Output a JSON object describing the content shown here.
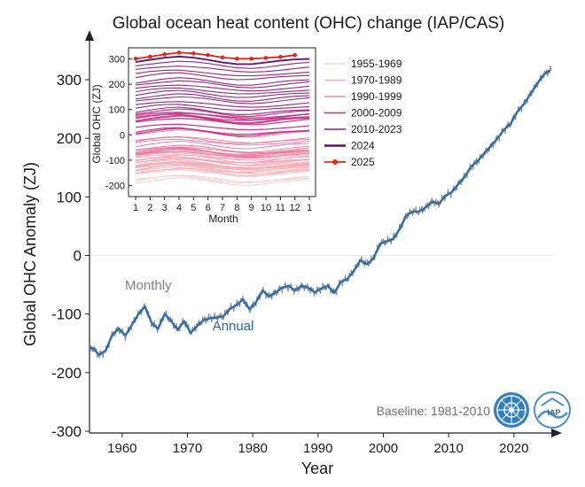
{
  "chart_data": [
    {
      "type": "line",
      "title": "Global ocean heat content (OHC) change (IAP/CAS)",
      "xlabel": "Year",
      "ylabel": "Global OHC Anomaly (ZJ)",
      "xlim": [
        1955,
        2026
      ],
      "ylim": [
        -300,
        350
      ],
      "xticks": [
        1960,
        1970,
        1980,
        1990,
        2000,
        2010,
        2020
      ],
      "yticks": [
        -300,
        -200,
        -100,
        0,
        100,
        200,
        300
      ],
      "baseline_note": "Baseline: 1981-2010",
      "colors": {
        "monthly": "#8c8c8c",
        "annual": "#2e6ea8",
        "zero_line": "#e6e6e6"
      },
      "series": [
        {
          "name": "Monthly",
          "role": "monthly"
        },
        {
          "name": "Annual",
          "role": "annual",
          "x": [
            1955,
            1956,
            1957,
            1958,
            1959,
            1960,
            1961,
            1962,
            1963,
            1964,
            1965,
            1966,
            1967,
            1968,
            1969,
            1970,
            1971,
            1972,
            1973,
            1974,
            1975,
            1976,
            1977,
            1978,
            1979,
            1980,
            1981,
            1982,
            1983,
            1984,
            1985,
            1986,
            1987,
            1988,
            1989,
            1990,
            1991,
            1992,
            1993,
            1994,
            1995,
            1996,
            1997,
            1998,
            1999,
            2000,
            2001,
            2002,
            2003,
            2004,
            2005,
            2006,
            2007,
            2008,
            2009,
            2010,
            2011,
            2012,
            2013,
            2014,
            2015,
            2016,
            2017,
            2018,
            2019,
            2020,
            2021,
            2022,
            2023,
            2024,
            2025
          ],
          "values": [
            -158,
            -170,
            -162,
            -135,
            -125,
            -137,
            -118,
            -100,
            -87,
            -115,
            -125,
            -100,
            -112,
            -127,
            -112,
            -132,
            -120,
            -110,
            -107,
            -106,
            -104,
            -91,
            -85,
            -75,
            -92,
            -80,
            -60,
            -70,
            -63,
            -55,
            -52,
            -60,
            -52,
            -55,
            -63,
            -56,
            -52,
            -64,
            -45,
            -40,
            -26,
            -8,
            -15,
            -5,
            20,
            24,
            28,
            45,
            68,
            75,
            75,
            82,
            92,
            88,
            102,
            108,
            122,
            135,
            152,
            162,
            175,
            187,
            200,
            215,
            225,
            245,
            258,
            275,
            292,
            308,
            316
          ]
        }
      ],
      "annotations": [
        {
          "text": "Monthly",
          "year": 1964,
          "value": -58
        },
        {
          "text": "Annual",
          "year": 1977,
          "value": -128
        }
      ]
    },
    {
      "type": "line",
      "title": "",
      "xlabel": "Month",
      "ylabel": "Global OHC (ZJ)",
      "xlim": [
        1,
        13
      ],
      "ylim": [
        -230,
        330
      ],
      "xticks": [
        1,
        2,
        3,
        4,
        5,
        6,
        7,
        8,
        9,
        10,
        11,
        12,
        13
      ],
      "xticklabels": [
        "1",
        "2",
        "3",
        "4",
        "5",
        "6",
        "7",
        "8",
        "9",
        "10",
        "11",
        "12",
        "1"
      ],
      "yticks": [
        -200,
        -100,
        0,
        100,
        200,
        300
      ],
      "seasonal_shape": [
        0,
        8,
        14,
        17,
        13,
        6,
        -2,
        -8,
        -9,
        -5,
        1,
        6,
        10
      ],
      "years": {
        "start": 1955,
        "end": 2025
      },
      "year_baseline_offset": -18,
      "legend": [
        {
          "label": "1955-1969",
          "color": "#f4c9c6",
          "width": 1.2,
          "marker": false
        },
        {
          "label": "1970-1989",
          "color": "#f2a3b5",
          "width": 1.2,
          "marker": false
        },
        {
          "label": "1990-1999",
          "color": "#e9739d",
          "width": 1.2,
          "marker": false
        },
        {
          "label": "2000-2009",
          "color": "#c72e86",
          "width": 1.6,
          "marker": false
        },
        {
          "label": "2010-2023",
          "color": "#8e1f79",
          "width": 1.4,
          "marker": false
        },
        {
          "label": "2024",
          "color": "#54106a",
          "width": 2.4,
          "marker": false
        },
        {
          "label": "2025",
          "color": "#e8251a",
          "width": 1.8,
          "marker": true
        }
      ],
      "series_2025": {
        "name": "2025",
        "months": [
          1,
          2,
          3,
          4,
          5,
          6,
          7,
          8,
          9,
          10,
          11,
          12
        ],
        "values": [
          301,
          309,
          318,
          325,
          322,
          315,
          306,
          301,
          301,
          304,
          308,
          315
        ]
      }
    }
  ]
}
